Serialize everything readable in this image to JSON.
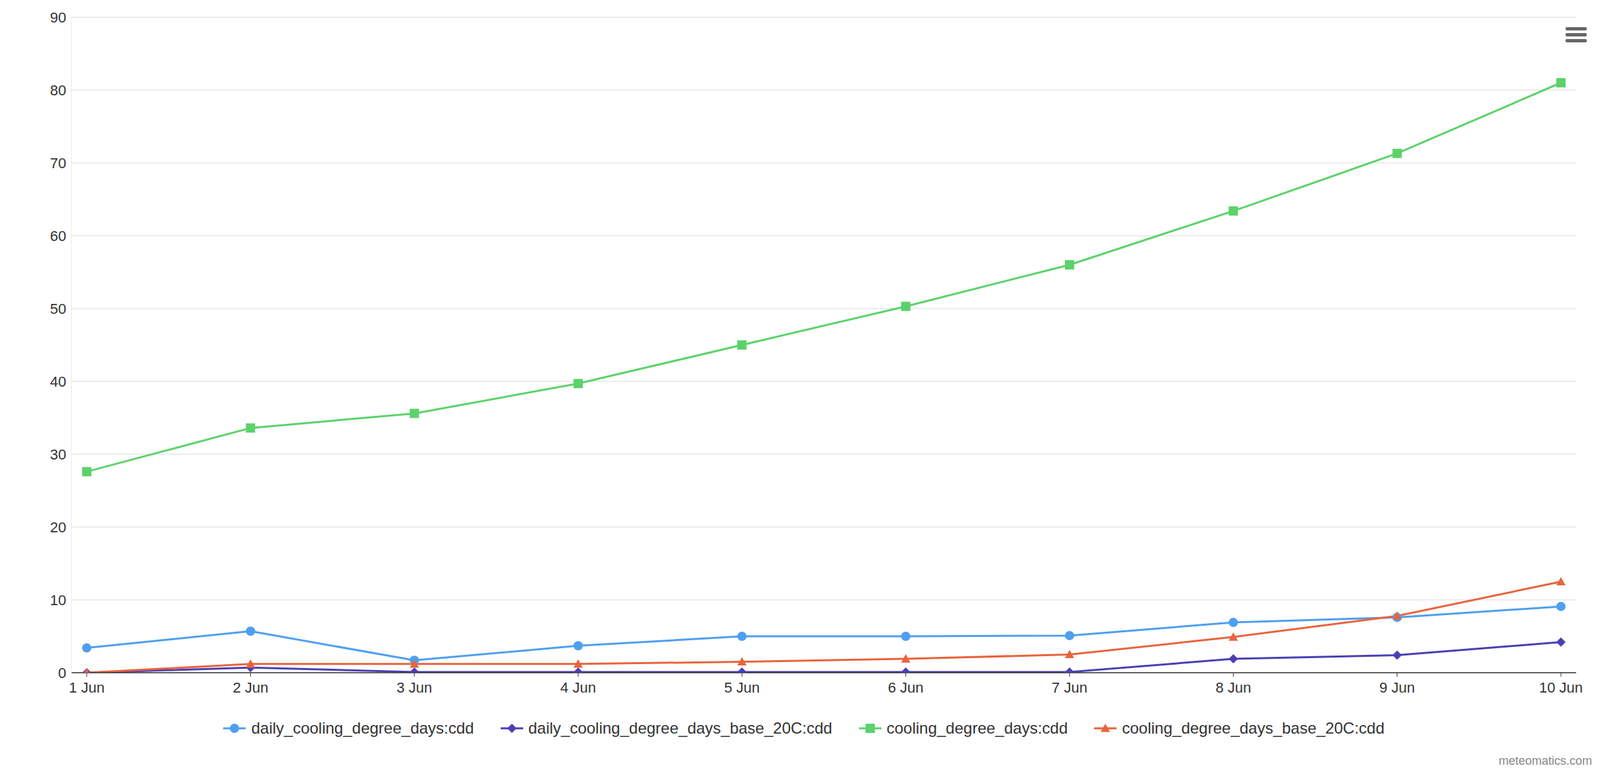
{
  "chart_data": {
    "type": "line",
    "categories": [
      "1 Jun",
      "2 Jun",
      "3 Jun",
      "4 Jun",
      "5 Jun",
      "6 Jun",
      "7 Jun",
      "8 Jun",
      "9 Jun",
      "10 Jun"
    ],
    "series": [
      {
        "name": "daily_cooling_degree_days:cdd",
        "color": "#4f9ff0",
        "marker": "circle",
        "values": [
          3.4,
          5.7,
          1.7,
          3.7,
          5.0,
          5.0,
          5.1,
          6.9,
          7.6,
          9.1
        ]
      },
      {
        "name": "daily_cooling_degree_days_base_20C:cdd",
        "color": "#4a3fb3",
        "marker": "diamond",
        "values": [
          0,
          0.7,
          0.1,
          0.1,
          0.1,
          0.1,
          0.1,
          1.9,
          2.4,
          4.2
        ]
      },
      {
        "name": "cooling_degree_days:cdd",
        "color": "#5cd26b",
        "marker": "square",
        "values": [
          27.6,
          33.6,
          35.6,
          39.7,
          45.0,
          50.3,
          56.0,
          63.4,
          71.3,
          81.0
        ]
      },
      {
        "name": "cooling_degree_days_base_20C:cdd",
        "color": "#e8643c",
        "marker": "triangle",
        "values": [
          0,
          1.2,
          1.2,
          1.2,
          1.5,
          1.9,
          2.5,
          4.9,
          7.8,
          12.5
        ]
      }
    ],
    "ylim": [
      0,
      90
    ],
    "yticks": [
      0,
      10,
      20,
      30,
      40,
      50,
      60,
      70,
      80,
      90
    ],
    "grid": true,
    "legend": "bottom",
    "annotations": [
      "meteomatics.com"
    ]
  }
}
